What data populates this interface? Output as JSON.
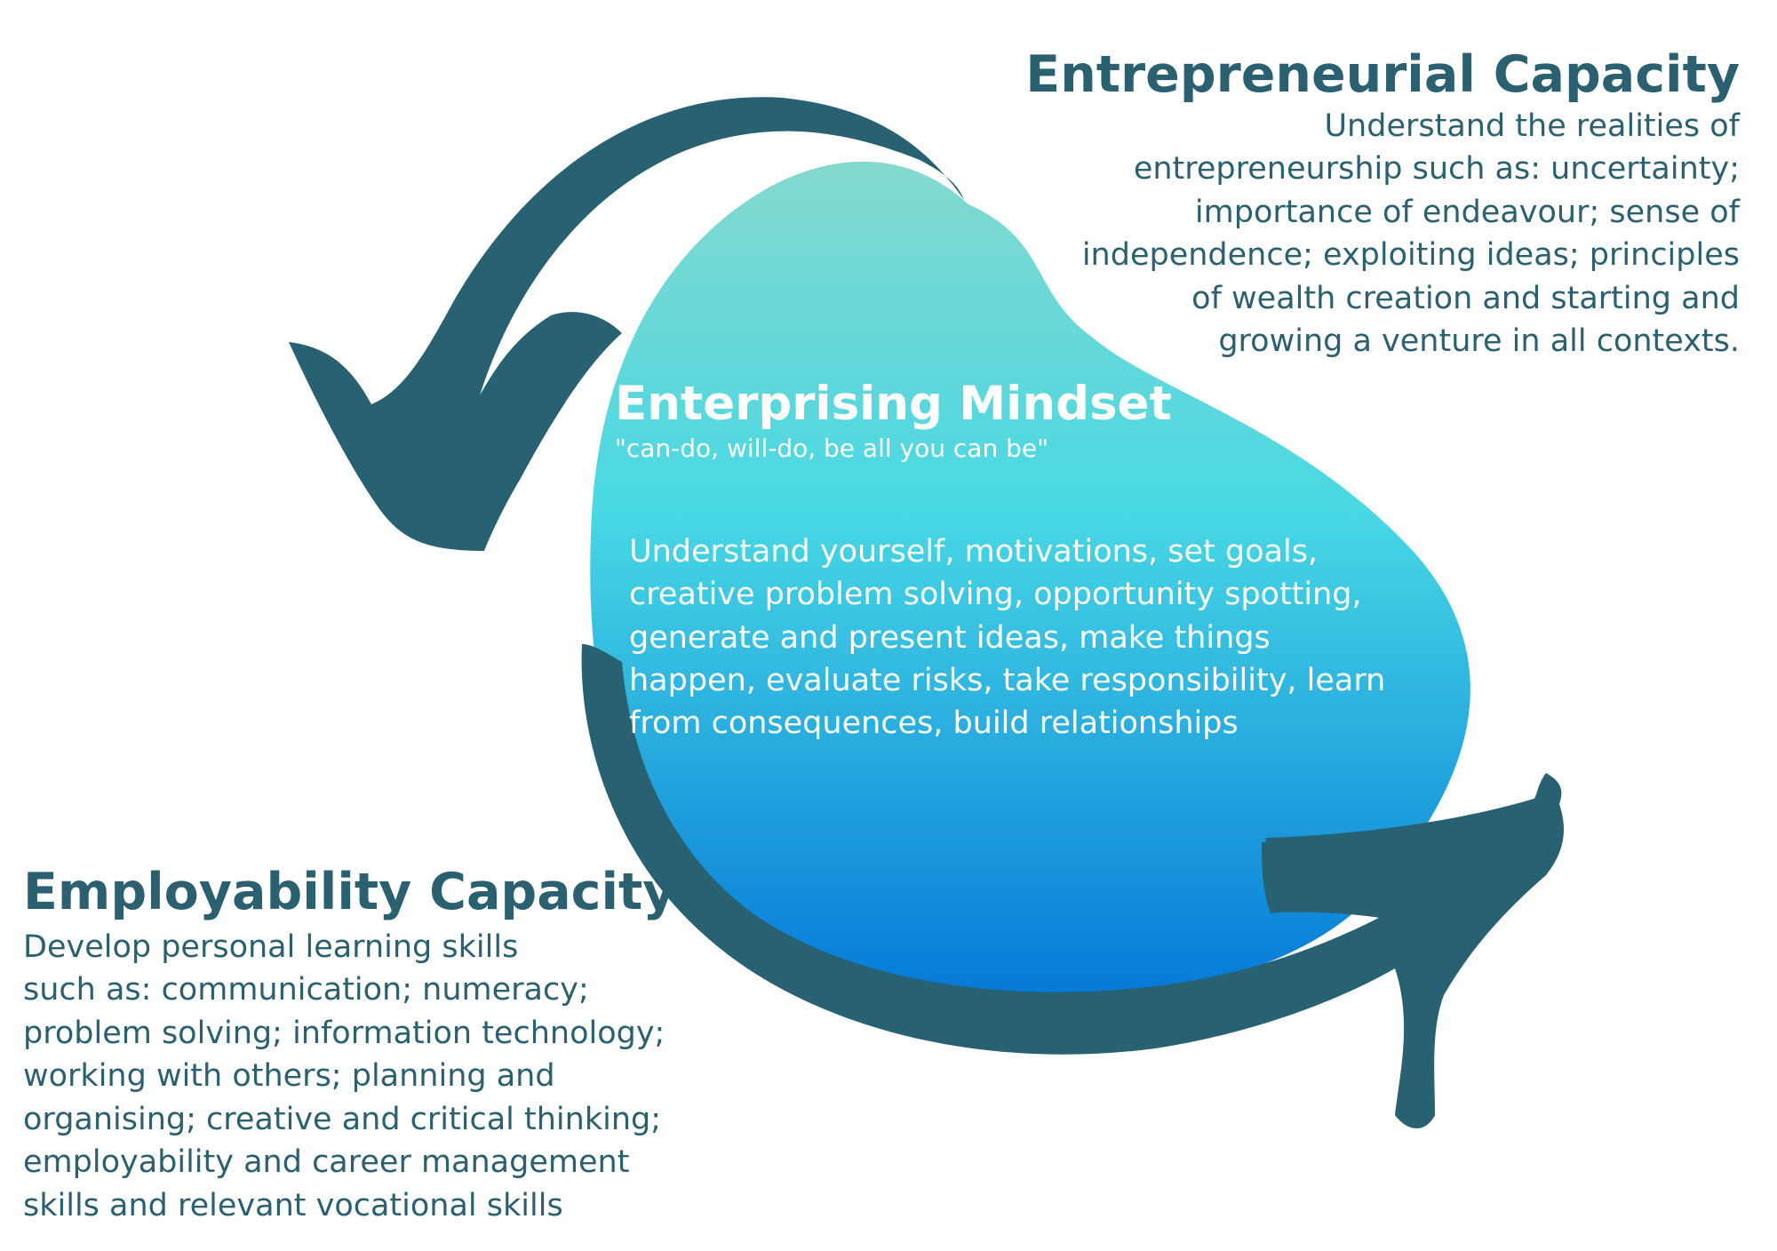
{
  "colors": {
    "arrow": "#276172",
    "text_dark": "#2b6070",
    "blob_top": "#84d9cf",
    "blob_mid": "#48d8e4",
    "blob_bottom": "#0479d8",
    "text_light": "#ffffff"
  },
  "entrepreneurial": {
    "title": "Entrepreneurial Capacity",
    "lines": [
      "Understand the realities of",
      "entrepreneurship such as: uncertainty;",
      "importance of endeavour; sense of",
      "independence; exploiting ideas; principles",
      "of wealth creation and starting and",
      "growing a venture in all contexts."
    ]
  },
  "mindset": {
    "title": "Enterprising Mindset",
    "tagline": "\"can-do, will-do, be all you can be\"",
    "lines": [
      "Understand yourself, motivations, set goals,",
      "creative problem solving, opportunity spotting,",
      "generate and present ideas, make things",
      "happen, evaluate risks, take responsibility, learn",
      "from consequences, build relationships"
    ]
  },
  "employability": {
    "title": "Employability Capacity",
    "lines": [
      "Develop personal learning skills",
      "such as: communication; numeracy;",
      "problem solving; information technology;",
      "working with others; planning and",
      "organising; creative and critical thinking;",
      "employability and career management",
      "skills and relevant vocational skills"
    ]
  }
}
